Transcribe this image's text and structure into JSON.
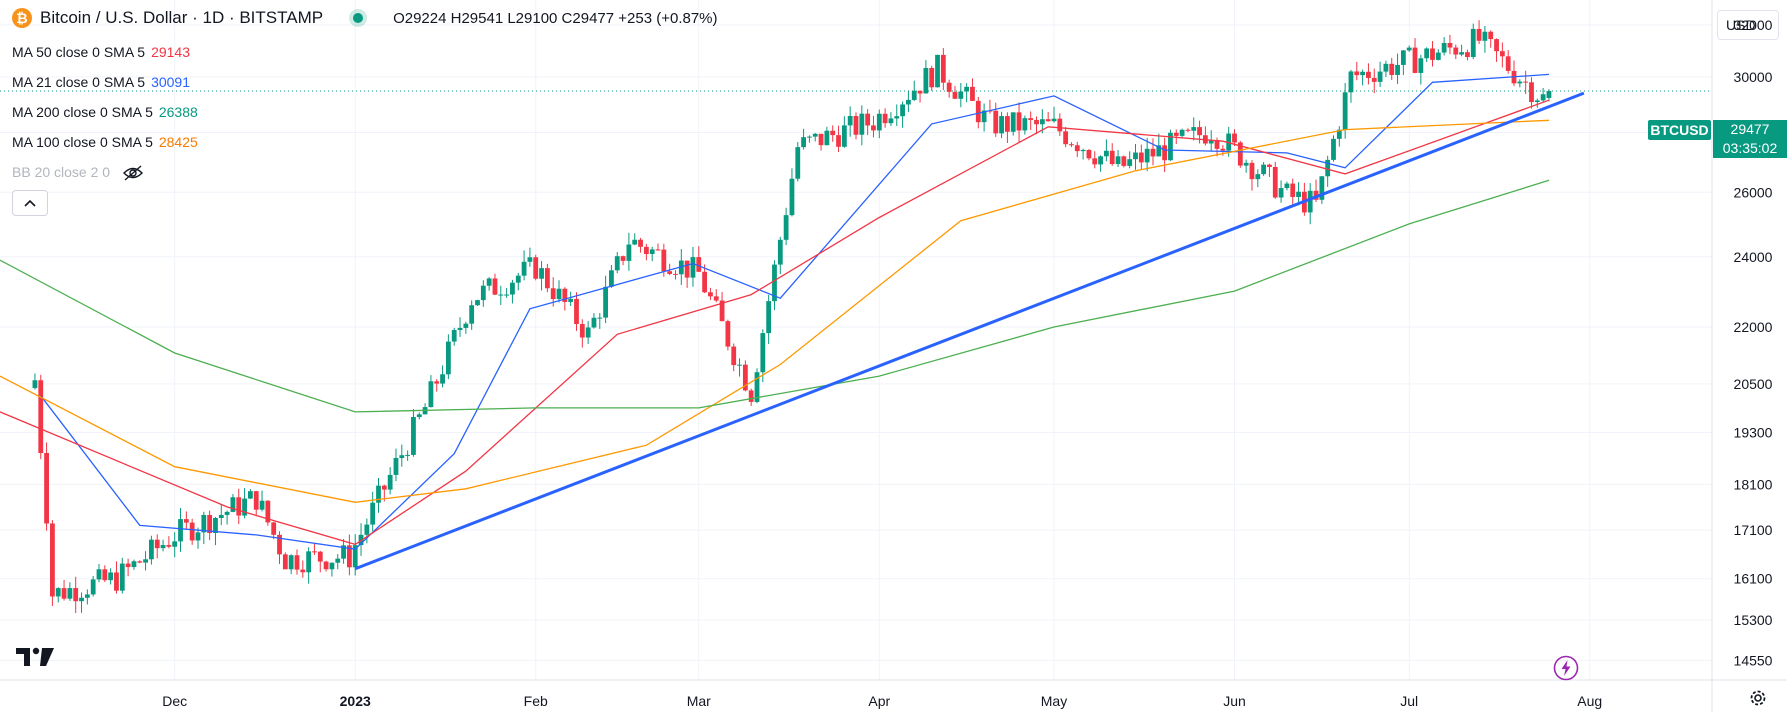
{
  "header": {
    "symbol": "Bitcoin / U.S. Dollar · 1D · BITSTAMP",
    "logo_glyph": "₿",
    "ohlc": "O29224 H29541 L29100 C29477 +253 (+0.87%)"
  },
  "indicators": [
    {
      "label": "MA 50 close 0 SMA 5",
      "value": "29143",
      "color": "#f23645"
    },
    {
      "label": "MA 21 close 0 SMA 5",
      "value": "30091",
      "color": "#2962ff"
    },
    {
      "label": "MA 200 close 0 SMA 5",
      "value": "26388",
      "color": "#089981"
    },
    {
      "label": "MA 100 close 0 SMA 5",
      "value": "28425",
      "color": "#f57c00"
    },
    {
      "label": "BB 20 close 2 0",
      "value": "",
      "color": "#b2b5be"
    }
  ],
  "currency": "USD",
  "price_badge": {
    "symbol": "BTCUSD",
    "price": "29477",
    "countdown": "03:35:02"
  },
  "colors": {
    "up": "#089981",
    "down": "#f23645",
    "trendline": "#2962ff",
    "ma21": "#2962ff",
    "ma50": "#f23645",
    "ma100": "#ff9800",
    "ma200": "#4caf50"
  },
  "chart_data": {
    "type": "candlestick",
    "title": "Bitcoin / U.S. Dollar · 1D · BITSTAMP",
    "x_ticks": [
      "Dec",
      "2023",
      "Feb",
      "Mar",
      "Apr",
      "May",
      "Jun",
      "Jul",
      "Aug"
    ],
    "y_ticks": [
      32000,
      30000,
      28000,
      26000,
      24000,
      22000,
      20500,
      19300,
      18100,
      17100,
      16100,
      15300,
      14550
    ],
    "y_scale": "log",
    "ylim": [
      14200,
      33000
    ],
    "candles": [
      {
        "date": "2022-11-07",
        "close": 20600
      },
      {
        "date": "2022-11-09",
        "close": 17500
      },
      {
        "date": "2022-11-10",
        "close": 15800
      },
      {
        "date": "2022-11-21",
        "close": 16100
      },
      {
        "date": "2022-12-01",
        "close": 17000
      },
      {
        "date": "2022-12-15",
        "close": 17800
      },
      {
        "date": "2022-12-20",
        "close": 16500
      },
      {
        "date": "2022-12-31",
        "close": 16550
      },
      {
        "date": "2023-01-13",
        "close": 19900
      },
      {
        "date": "2023-01-21",
        "close": 22800
      },
      {
        "date": "2023-02-01",
        "close": 23700
      },
      {
        "date": "2023-02-10",
        "close": 21800
      },
      {
        "date": "2023-02-17",
        "close": 24500
      },
      {
        "date": "2023-03-01",
        "close": 23500
      },
      {
        "date": "2023-03-10",
        "close": 20300
      },
      {
        "date": "2023-03-18",
        "close": 27500
      },
      {
        "date": "2023-03-31",
        "close": 28400
      },
      {
        "date": "2023-04-11",
        "close": 30300
      },
      {
        "date": "2023-04-20",
        "close": 28300
      },
      {
        "date": "2023-05-01",
        "close": 28200
      },
      {
        "date": "2023-05-12",
        "close": 26800
      },
      {
        "date": "2023-05-28",
        "close": 28100
      },
      {
        "date": "2023-06-10",
        "close": 25900
      },
      {
        "date": "2023-06-15",
        "close": 25600
      },
      {
        "date": "2023-06-21",
        "close": 30000
      },
      {
        "date": "2023-07-01",
        "close": 30600
      },
      {
        "date": "2023-07-13",
        "close": 31400
      },
      {
        "date": "2023-07-24",
        "close": 29200
      },
      {
        "date": "2023-07-25",
        "close": 29477
      }
    ],
    "series": [
      {
        "name": "MA 21",
        "color": "#2962ff",
        "x": [
          "2022-11-08",
          "2022-11-25",
          "2022-12-15",
          "2023-01-01",
          "2023-01-18",
          "2023-01-31",
          "2023-02-28",
          "2023-03-15",
          "2023-04-10",
          "2023-05-01",
          "2023-05-20",
          "2023-06-10",
          "2023-06-20",
          "2023-07-05",
          "2023-07-25"
        ],
        "y": [
          20200,
          17200,
          17000,
          16700,
          18800,
          22500,
          23800,
          22800,
          28300,
          29300,
          27400,
          27300,
          26800,
          29800,
          30091
        ]
      },
      {
        "name": "MA 50",
        "color": "#f23645",
        "x": [
          "2022-11-01",
          "2022-12-10",
          "2023-01-01",
          "2023-01-20",
          "2023-02-15",
          "2023-03-10",
          "2023-04-01",
          "2023-04-30",
          "2023-05-30",
          "2023-06-20",
          "2023-07-25"
        ],
        "y": [
          19800,
          17600,
          16800,
          18400,
          21800,
          22900,
          25200,
          28200,
          27700,
          26600,
          29143
        ]
      },
      {
        "name": "MA 100",
        "color": "#ff9800",
        "x": [
          "2022-11-01",
          "2022-12-01",
          "2023-01-01",
          "2023-01-20",
          "2023-02-20",
          "2023-03-15",
          "2023-04-15",
          "2023-05-15",
          "2023-06-20",
          "2023-07-25"
        ],
        "y": [
          20700,
          18500,
          17700,
          18000,
          19000,
          21000,
          25100,
          26700,
          28100,
          28425
        ]
      },
      {
        "name": "MA 200",
        "color": "#4caf50",
        "x": [
          "2022-11-01",
          "2022-12-01",
          "2023-01-01",
          "2023-02-01",
          "2023-03-01",
          "2023-04-01",
          "2023-05-01",
          "2023-06-01",
          "2023-07-01",
          "2023-07-25"
        ],
        "y": [
          23900,
          21300,
          19800,
          19900,
          19900,
          20700,
          22000,
          23000,
          25000,
          26388
        ]
      }
    ],
    "trendline": {
      "from": {
        "date": "2023-01-01",
        "value": 16300
      },
      "to": {
        "date": "2023-07-31",
        "value": 29400
      }
    },
    "last_price": 29477
  }
}
